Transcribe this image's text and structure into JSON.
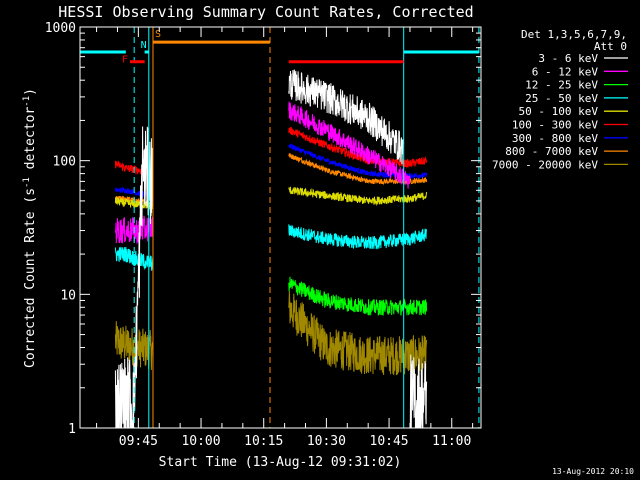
{
  "chart_data": {
    "type": "line",
    "title": "HESSI Observing Summary Count Rates, Corrected",
    "xlabel": "Start Time (13-Aug-12 09:31:02)",
    "ylabel": "Corrected Count Rate (s",
    "ylabel_sup1": "-1",
    "ylabel_mid": " detector",
    "ylabel_sup2": "-1",
    "ylabel_end": ")",
    "y_scale": "log",
    "ylim": [
      1,
      1000
    ],
    "xlim_minutes": [
      "09:31:02",
      "11:07:00"
    ],
    "yticks": [
      {
        "value": 1,
        "label": "1"
      },
      {
        "value": 10,
        "label": "10"
      },
      {
        "value": 100,
        "label": "100"
      },
      {
        "value": 1000,
        "label": "1000"
      }
    ],
    "xticks": [
      {
        "time": "09:45",
        "label": "09:45"
      },
      {
        "time": "10:00",
        "label": "10:00"
      },
      {
        "time": "10:15",
        "label": "10:15"
      },
      {
        "time": "10:30",
        "label": "10:30"
      },
      {
        "time": "10:45",
        "label": "10:45"
      },
      {
        "time": "11:00",
        "label": "11:00"
      }
    ],
    "legend": {
      "placement": "right",
      "header_line1": "Det 1,3,5,6,7,9,",
      "header_line2": "Att 0",
      "entries": [
        {
          "label": "3 - 6 keV",
          "color": "#ffffff"
        },
        {
          "label": "6 - 12 keV",
          "color": "#ff00ff"
        },
        {
          "label": "12 - 25 keV",
          "color": "#00ff00"
        },
        {
          "label": "25 - 50 keV",
          "color": "#00ffff"
        },
        {
          "label": "50 - 100 keV",
          "color": "#dddd00"
        },
        {
          "label": "100 - 300 keV",
          "color": "#ff0000"
        },
        {
          "label": "300 - 800 keV",
          "color": "#0000ff"
        },
        {
          "label": "800 - 7000 keV",
          "color": "#ff8800"
        },
        {
          "label": "7000 - 20000 keV",
          "color": "#a08800"
        }
      ]
    },
    "series": [
      {
        "name": "3 - 6 keV",
        "color": "#ffffff",
        "segments": [
          {
            "points": [
              [
                "09:39:30",
                1.5
              ],
              [
                "09:42:00",
                1.6
              ],
              [
                "09:44:00",
                1.6
              ],
              [
                "09:46:00",
                90
              ],
              [
                "09:48:30",
                70
              ]
            ],
            "noise": 0.35
          },
          {
            "points": [
              [
                "10:21:00",
                380
              ],
              [
                "10:30:00",
                300
              ],
              [
                "10:40:00",
                210
              ],
              [
                "10:48:30",
                120
              ]
            ],
            "noise": 0.12
          },
          {
            "points": [
              [
                "10:50:00",
                1.6
              ],
              [
                "10:54:00",
                1.6
              ]
            ],
            "noise": 0.35
          }
        ]
      },
      {
        "name": "6 - 12 keV",
        "color": "#ff00ff",
        "segments": [
          {
            "points": [
              [
                "09:39:30",
                30
              ],
              [
                "09:42:00",
                30
              ],
              [
                "09:45:00",
                30
              ],
              [
                "09:48:30",
                32
              ]
            ],
            "noise": 0.1
          },
          {
            "points": [
              [
                "10:21:00",
                240
              ],
              [
                "10:30:00",
                170
              ],
              [
                "10:40:00",
                110
              ],
              [
                "10:50:00",
                70
              ]
            ],
            "noise": 0.07
          }
        ]
      },
      {
        "name": "12 - 25 keV",
        "color": "#00ff00",
        "segments": [
          {
            "points": [
              [
                "10:21:00",
                12
              ],
              [
                "10:30:00",
                9
              ],
              [
                "10:40:00",
                8
              ],
              [
                "10:50:00",
                8
              ],
              [
                "10:54:00",
                8
              ]
            ],
            "noise": 0.06
          }
        ]
      },
      {
        "name": "25 - 50 keV",
        "color": "#00ffff",
        "segments": [
          {
            "points": [
              [
                "09:39:30",
                20
              ],
              [
                "09:42:00",
                20
              ],
              [
                "09:45:00",
                18
              ],
              [
                "09:48:30",
                17
              ]
            ],
            "noise": 0.06
          },
          {
            "points": [
              [
                "10:21:00",
                30
              ],
              [
                "10:30:00",
                26
              ],
              [
                "10:40:00",
                24
              ],
              [
                "10:50:00",
                26
              ],
              [
                "10:54:00",
                28
              ]
            ],
            "noise": 0.05
          }
        ]
      },
      {
        "name": "50 - 100 keV",
        "color": "#dddd00",
        "segments": [
          {
            "points": [
              [
                "09:39:30",
                50
              ],
              [
                "09:42:00",
                48
              ],
              [
                "09:45:00",
                47
              ],
              [
                "09:48:30",
                46
              ]
            ],
            "noise": 0.03
          },
          {
            "points": [
              [
                "10:21:00",
                60
              ],
              [
                "10:30:00",
                55
              ],
              [
                "10:40:00",
                50
              ],
              [
                "10:50:00",
                52
              ],
              [
                "10:54:00",
                55
              ]
            ],
            "noise": 0.03
          }
        ]
      },
      {
        "name": "100 - 300 keV",
        "color": "#ff0000",
        "segments": [
          {
            "points": [
              [
                "09:39:30",
                95
              ],
              [
                "09:42:00",
                88
              ],
              [
                "09:45:00",
                85
              ],
              [
                "09:48:30",
                80
              ]
            ],
            "noise": 0.03
          },
          {
            "points": [
              [
                "10:21:00",
                170
              ],
              [
                "10:30:00",
                130
              ],
              [
                "10:40:00",
                100
              ],
              [
                "10:50:00",
                95
              ],
              [
                "10:54:00",
                100
              ]
            ],
            "noise": 0.03
          }
        ]
      },
      {
        "name": "300 - 800 keV",
        "color": "#0000ff",
        "segments": [
          {
            "points": [
              [
                "09:39:30",
                60
              ],
              [
                "09:42:00",
                60
              ],
              [
                "09:45:00",
                57
              ],
              [
                "09:48:30",
                54
              ]
            ],
            "noise": 0.02
          },
          {
            "points": [
              [
                "10:21:00",
                130
              ],
              [
                "10:30:00",
                100
              ],
              [
                "10:40:00",
                80
              ],
              [
                "10:50:00",
                77
              ],
              [
                "10:54:00",
                78
              ]
            ],
            "noise": 0.02
          }
        ]
      },
      {
        "name": "800 - 7000 keV",
        "color": "#ff8800",
        "segments": [
          {
            "points": [
              [
                "09:39:30",
                52
              ],
              [
                "09:42:00",
                52
              ],
              [
                "09:45:00",
                50
              ],
              [
                "09:48:30",
                48
              ]
            ],
            "noise": 0.02
          },
          {
            "points": [
              [
                "10:21:00",
                110
              ],
              [
                "10:30:00",
                85
              ],
              [
                "10:40:00",
                70
              ],
              [
                "10:50:00",
                70
              ],
              [
                "10:54:00",
                72
              ]
            ],
            "noise": 0.02
          }
        ]
      },
      {
        "name": "7000 - 20000 keV",
        "color": "#a08800",
        "segments": [
          {
            "points": [
              [
                "09:39:30",
                4.5
              ],
              [
                "09:42:00",
                4.2
              ],
              [
                "09:45:00",
                4.0
              ],
              [
                "09:48:30",
                3.8
              ]
            ],
            "noise": 0.15
          },
          {
            "points": [
              [
                "10:21:00",
                8
              ],
              [
                "10:30:00",
                4
              ],
              [
                "10:40:00",
                3.5
              ],
              [
                "10:50:00",
                3.5
              ],
              [
                "10:54:00",
                3.5
              ]
            ],
            "noise": 0.15
          }
        ]
      }
    ],
    "attenuator_bars": [
      {
        "label": "",
        "color": "#00ffff",
        "start": "09:31:02",
        "end": "09:42:00",
        "y": 650
      },
      {
        "label": "F",
        "color": "#ff0000",
        "start": "09:43:00",
        "end": "09:46:30",
        "y": 550
      },
      {
        "label": "N",
        "color": "#00ffff",
        "start": "09:46:30",
        "end": "09:47:30",
        "y": 650
      },
      {
        "label": "S",
        "color": "#ff8800",
        "start": "09:48:30",
        "end": "10:16:30",
        "y": 770
      },
      {
        "label": "",
        "color": "#ff0000",
        "start": "10:21:00",
        "end": "10:48:30",
        "y": 550
      },
      {
        "label": "",
        "color": "#00ffff",
        "start": "10:48:30",
        "end": "11:06:30",
        "y": 650
      }
    ],
    "vertical_markers": [
      {
        "time": "09:44:00",
        "color": "#00ffff",
        "style": "dashed"
      },
      {
        "time": "09:47:30",
        "color": "#00ffff",
        "style": "solid"
      },
      {
        "time": "09:48:30",
        "color": "#ff8800",
        "style": "solid"
      },
      {
        "time": "10:16:30",
        "color": "#ff8800",
        "style": "dashed"
      },
      {
        "time": "10:48:30",
        "color": "#00ffff",
        "style": "solid"
      },
      {
        "time": "11:06:30",
        "color": "#00ffff",
        "style": "dashed"
      }
    ]
  },
  "footer_timestamp": "13-Aug-2012 20:10"
}
